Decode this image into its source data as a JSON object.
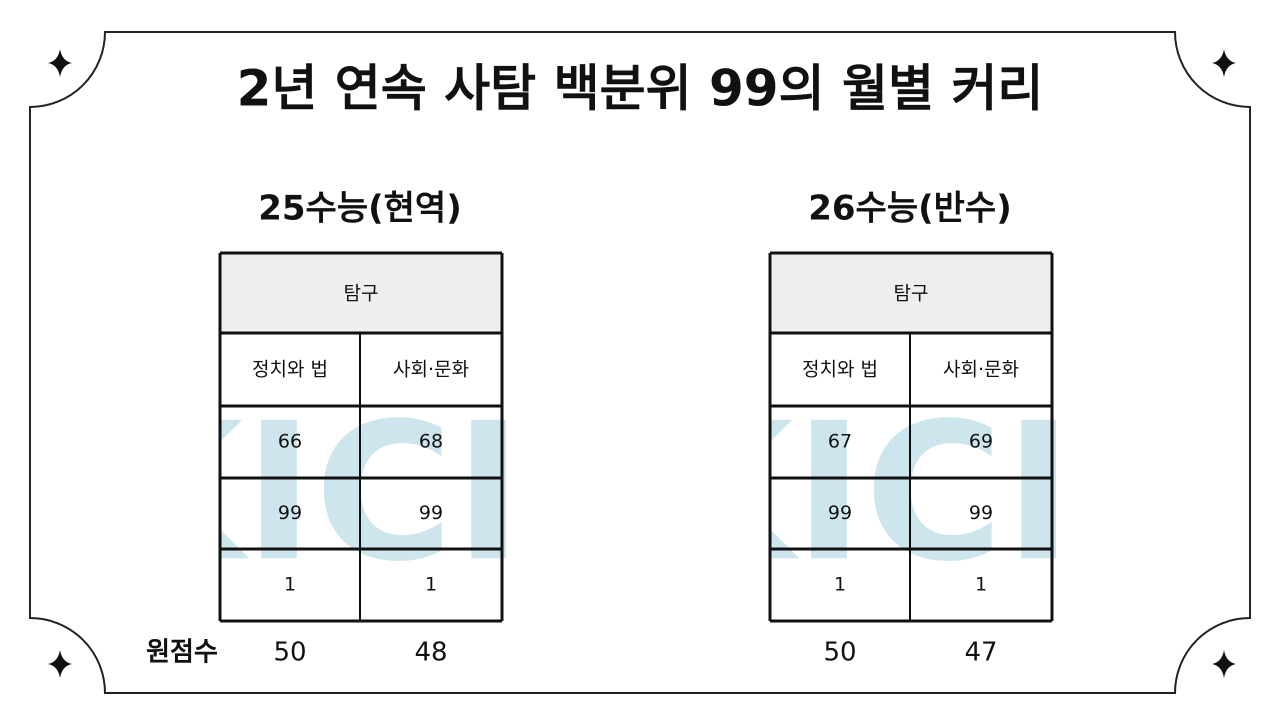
{
  "title": "2년 연속 사탐 백분위 99의 월별 커리",
  "tables": [
    {
      "caption": "25수능(현역)",
      "header": "탐구",
      "columns": [
        "정치와 법",
        "사회·문화"
      ],
      "rows": [
        [
          66,
          68
        ],
        [
          99,
          99
        ],
        [
          1,
          1
        ]
      ],
      "raw_score_label": "원점수",
      "raw_scores": [
        50,
        48
      ],
      "watermark": "KICE"
    },
    {
      "caption": "26수능(반수)",
      "header": "탐구",
      "columns": [
        "정치와 법",
        "사회·문화"
      ],
      "rows": [
        [
          67,
          69
        ],
        [
          99,
          99
        ],
        [
          1,
          1
        ]
      ],
      "raw_scores": [
        50,
        47
      ],
      "watermark": "KICE"
    }
  ]
}
